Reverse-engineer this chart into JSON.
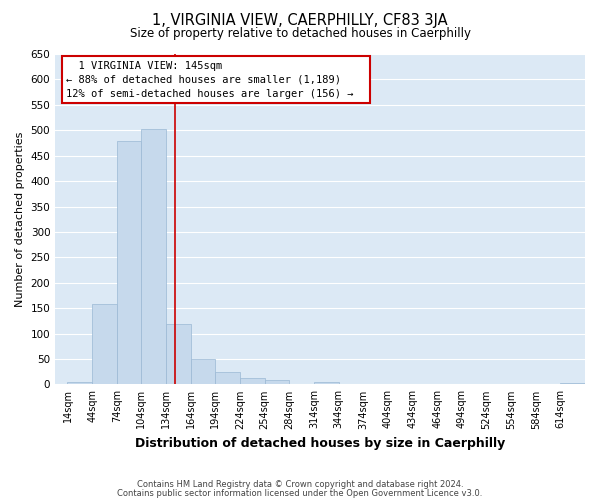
{
  "title": "1, VIRGINIA VIEW, CAERPHILLY, CF83 3JA",
  "subtitle": "Size of property relative to detached houses in Caerphilly",
  "xlabel": "Distribution of detached houses by size in Caerphilly",
  "ylabel": "Number of detached properties",
  "footer_line1": "Contains HM Land Registry data © Crown copyright and database right 2024.",
  "footer_line2": "Contains public sector information licensed under the Open Government Licence v3.0.",
  "bin_labels": [
    "14sqm",
    "44sqm",
    "74sqm",
    "104sqm",
    "134sqm",
    "164sqm",
    "194sqm",
    "224sqm",
    "254sqm",
    "284sqm",
    "314sqm",
    "344sqm",
    "374sqm",
    "404sqm",
    "434sqm",
    "464sqm",
    "494sqm",
    "524sqm",
    "554sqm",
    "584sqm",
    "614sqm"
  ],
  "bar_heights": [
    5,
    158,
    478,
    503,
    119,
    50,
    25,
    12,
    8,
    0,
    5,
    0,
    0,
    0,
    0,
    0,
    0,
    0,
    0,
    0,
    3
  ],
  "bar_color": "#c6d9ec",
  "bar_edge_color": "#9ab8d4",
  "ylim": [
    0,
    650
  ],
  "yticks": [
    0,
    50,
    100,
    150,
    200,
    250,
    300,
    350,
    400,
    450,
    500,
    550,
    600,
    650
  ],
  "annotation_title": "1 VIRGINIA VIEW: 145sqm",
  "annotation_line1": "← 88% of detached houses are smaller (1,189)",
  "annotation_line2": "12% of semi-detached houses are larger (156) →",
  "annotation_box_color": "#ffffff",
  "annotation_box_edge_color": "#cc0000",
  "red_line_color": "#cc0000",
  "red_line_x": 145,
  "background_color": "#ffffff",
  "plot_bg_color": "#dce9f5",
  "grid_color": "#ffffff"
}
